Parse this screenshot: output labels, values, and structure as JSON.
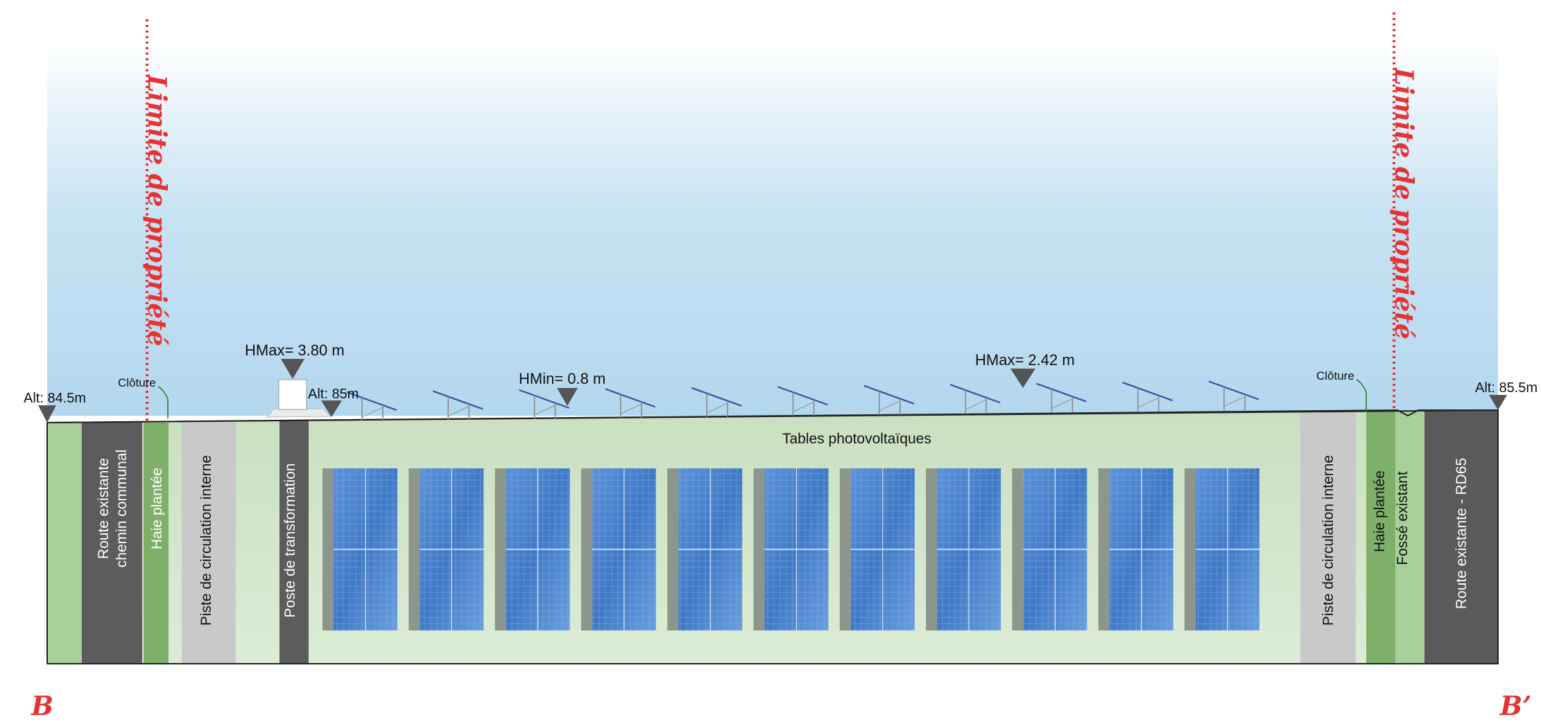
{
  "section": {
    "start_label": "B",
    "end_label": "B’"
  },
  "property_limits": [
    {
      "label": "Limite de propriété"
    },
    {
      "label": "Limite de propriété"
    }
  ],
  "altitude_markers": [
    {
      "label": "Alt: 84.5m"
    },
    {
      "label": "Alt: 85m"
    },
    {
      "label": "Alt: 85.5m"
    }
  ],
  "height_markers": [
    {
      "label": "HMax= 3.80 m"
    },
    {
      "label": "HMin= 0.8 m"
    },
    {
      "label": "HMax= 2.42 m"
    }
  ],
  "fences": [
    {
      "label": "Clôture"
    },
    {
      "label": "Clôture"
    }
  ],
  "bands": {
    "route_communal_line1": "Route existante",
    "route_communal_line2": "chemin communal",
    "haie_left": "Haie plantée",
    "piste_left": "Piste de circulation interne",
    "poste": "Poste de transformation",
    "tables": "Tables photovoltaïques",
    "piste_right": "Piste de circulation interne",
    "haie_right": "Haie plantée",
    "fosse": "Fossé existant",
    "route_rd65": "Route existante  - RD65"
  },
  "pv_table_count": 11,
  "colors": {
    "property_limit": "#e63232",
    "sky_top": "#ffffff",
    "sky_bottom": "#b9dbef",
    "field_green": "#d3e6cc",
    "hedge_green": "#7fb06a",
    "road_dark": "#5a5a5a",
    "track_grey": "#c9c9c9",
    "panel_blue": "#4a82cc",
    "marker_grey": "#555555"
  }
}
